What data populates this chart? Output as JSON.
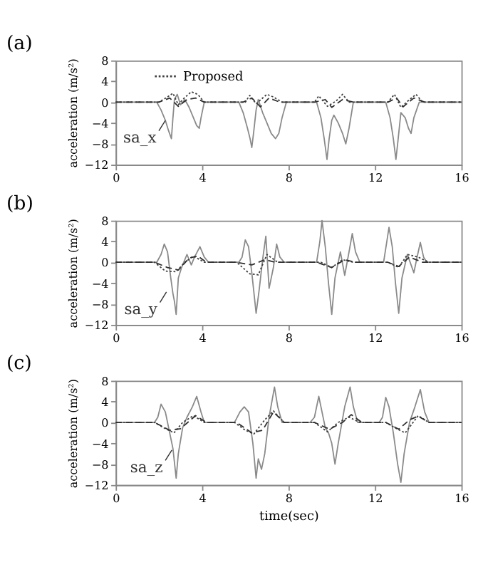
{
  "chart_data": [
    {
      "type": "line",
      "title": "(a)",
      "ylabel": "acceleration (m/s²)",
      "xlim": [
        0,
        16
      ],
      "xticks": [
        0,
        4,
        8,
        12,
        16
      ],
      "ylim": [
        -12,
        8
      ],
      "yticks": [
        -12,
        -8,
        -4,
        0,
        4,
        8
      ],
      "grid": false,
      "legend": "top left",
      "annotations": [
        {
          "text": "sa_x",
          "x": 2.3,
          "y": -3.5
        }
      ],
      "series": [
        {
          "color": "#8a8a8a",
          "line_style": "solid",
          "x": [
            0,
            1.9,
            2.1,
            2.3,
            2.45,
            2.58,
            2.65,
            2.72,
            2.85,
            3.0,
            3.2,
            3.4,
            3.6,
            3.75,
            3.87,
            3.95,
            4.1,
            5.7,
            5.9,
            6.1,
            6.22,
            6.3,
            6.38,
            6.5,
            6.6,
            6.8,
            7.0,
            7.2,
            7.4,
            7.55,
            7.7,
            7.9,
            8.3,
            9.3,
            9.5,
            9.65,
            9.78,
            9.88,
            10.0,
            10.1,
            10.3,
            10.5,
            10.65,
            10.8,
            11.0,
            12.5,
            12.7,
            12.85,
            12.97,
            13.05,
            13.2,
            13.4,
            13.55,
            13.67,
            13.8,
            14.05,
            16
          ],
          "values": [
            0,
            0,
            -1.5,
            -3.5,
            -5.5,
            -7,
            -3,
            0.5,
            1.5,
            -0.5,
            0.5,
            -1,
            -3,
            -4.5,
            -5,
            -3,
            0,
            0,
            -2,
            -5,
            -7,
            -8.7,
            -6,
            -1.5,
            0.5,
            -2,
            -4,
            -6,
            -7,
            -6,
            -3,
            0,
            0,
            0,
            -3,
            -7,
            -11,
            -7,
            -3.5,
            -2.5,
            -4,
            -6,
            -8,
            -5,
            0,
            0,
            -3,
            -7,
            -11,
            -8,
            -2,
            -3,
            -5,
            -6,
            -3,
            0,
            0
          ]
        },
        {
          "name": "Proposed",
          "color": "#404040",
          "line_style": "dotted",
          "x": [
            0,
            2.0,
            2.4,
            2.65,
            2.9,
            3.1,
            3.5,
            3.8,
            4.1,
            6.0,
            6.2,
            6.5,
            7.0,
            7.3,
            7.7,
            9.2,
            9.4,
            9.8,
            10.2,
            10.5,
            10.8,
            12.6,
            12.9,
            13.2,
            13.6,
            13.9,
            14.2,
            16
          ],
          "values": [
            0,
            0,
            1,
            1.7,
            -0.5,
            0.5,
            2,
            1.5,
            0,
            0,
            1.3,
            -0.3,
            1.5,
            1,
            0,
            0,
            1.2,
            -0.8,
            0.2,
            1.5,
            0,
            0,
            1.5,
            -1,
            0.5,
            1.5,
            0,
            0
          ]
        },
        {
          "color": "#303030",
          "line_style": "dashed",
          "x": [
            0,
            2.0,
            2.5,
            2.9,
            3.3,
            3.7,
            4.1,
            5.9,
            6.3,
            6.7,
            7.1,
            7.6,
            9.2,
            9.7,
            10.0,
            10.5,
            11.0,
            12.6,
            13.0,
            13.3,
            13.8,
            14.3,
            16
          ],
          "values": [
            0,
            0,
            0.8,
            -0.8,
            0.5,
            0.8,
            0,
            0,
            0.8,
            -0.9,
            0.8,
            0,
            0,
            0.5,
            -1,
            0.5,
            0,
            0,
            0.8,
            -0.9,
            0.8,
            0,
            0
          ]
        }
      ]
    },
    {
      "type": "line",
      "title": "(b)",
      "ylabel": "acceleration (m/s²)",
      "xlim": [
        0,
        16
      ],
      "xticks": [
        0,
        4,
        8,
        12,
        16
      ],
      "ylim": [
        -12,
        8
      ],
      "yticks": [
        -12,
        -8,
        -4,
        0,
        4,
        8
      ],
      "grid": false,
      "annotations": [
        {
          "text": "sa_y",
          "x": 2.35,
          "y": -5.7
        }
      ],
      "series": [
        {
          "color": "#8a8a8a",
          "line_style": "solid",
          "x": [
            0,
            1.9,
            2.1,
            2.25,
            2.4,
            2.55,
            2.65,
            2.72,
            2.8,
            2.9,
            3.05,
            3.3,
            3.5,
            3.65,
            3.9,
            4.1,
            4.3,
            5.7,
            5.85,
            6.0,
            6.15,
            6.3,
            6.5,
            6.65,
            6.8,
            6.95,
            7.1,
            7.3,
            7.45,
            7.6,
            7.8,
            9.3,
            9.45,
            9.55,
            9.7,
            9.85,
            10.0,
            10.15,
            10.4,
            10.6,
            10.8,
            10.95,
            11.1,
            11.3,
            12.4,
            12.55,
            12.65,
            12.8,
            12.95,
            13.1,
            13.25,
            13.5,
            13.8,
            13.95,
            14.1,
            14.25,
            14.4,
            16
          ],
          "values": [
            0,
            0,
            1.5,
            3.5,
            2,
            -3,
            -6,
            -7.5,
            -10,
            -3,
            -1,
            1.5,
            -0.5,
            1,
            3,
            1,
            0,
            0,
            1,
            4.3,
            3,
            -2,
            -9.8,
            -5,
            0.5,
            5,
            -5,
            -1,
            3.5,
            1,
            0,
            0,
            4,
            8,
            3,
            -4,
            -10,
            -3,
            2,
            -2.5,
            2,
            5.5,
            2,
            0,
            0,
            4,
            6.7,
            3,
            -4,
            -9.8,
            -3,
            1.5,
            -2,
            1,
            3.8,
            1,
            0,
            0
          ]
        },
        {
          "color": "#404040",
          "line_style": "dotted",
          "x": [
            0,
            1.8,
            2.3,
            2.8,
            3.2,
            3.6,
            4.1,
            5.6,
            6.2,
            6.6,
            7.0,
            7.5,
            9.5,
            10.0,
            10.5,
            11.0,
            12.6,
            13.1,
            13.5,
            14.0,
            14.5,
            16
          ],
          "values": [
            0,
            0,
            -1.7,
            -1.8,
            0,
            1.2,
            0,
            0,
            -2.2,
            -2.4,
            1.5,
            0,
            0,
            -1,
            0.5,
            0,
            0,
            -1,
            1.5,
            1,
            0,
            0
          ]
        },
        {
          "color": "#303030",
          "line_style": "dashed",
          "x": [
            0,
            1.8,
            2.4,
            2.9,
            3.4,
            3.8,
            4.2,
            5.6,
            6.3,
            6.9,
            7.4,
            9.3,
            10.0,
            10.6,
            11.1,
            12.6,
            13.1,
            13.6,
            14.2,
            16
          ],
          "values": [
            0,
            0,
            -1,
            -1.5,
            0.8,
            1.2,
            0,
            0,
            -0.5,
            0.5,
            0,
            0,
            -1,
            0.5,
            0,
            0,
            -0.8,
            1,
            0,
            0
          ]
        }
      ]
    },
    {
      "type": "line",
      "title": "(c)",
      "xlabel": "time(sec)",
      "ylabel": "acceleration (m/s²)",
      "xlim": [
        0,
        16
      ],
      "xticks": [
        0,
        4,
        8,
        12,
        16
      ],
      "ylim": [
        -12,
        8
      ],
      "yticks": [
        -12,
        -8,
        -4,
        0,
        4,
        8
      ],
      "grid": false,
      "annotations": [
        {
          "text": "sa_z",
          "x": 2.6,
          "y": -5.3
        }
      ],
      "series": [
        {
          "color": "#8a8a8a",
          "line_style": "solid",
          "x": [
            0,
            1.8,
            1.95,
            2.1,
            2.3,
            2.5,
            2.65,
            2.8,
            2.9,
            3.1,
            3.3,
            3.55,
            3.75,
            3.95,
            4.1,
            4.3,
            5.5,
            5.75,
            5.95,
            6.15,
            6.35,
            6.5,
            6.6,
            6.75,
            6.9,
            7.1,
            7.35,
            7.5,
            7.7,
            9.0,
            9.2,
            9.4,
            9.55,
            9.7,
            9.85,
            10.0,
            10.15,
            10.3,
            10.6,
            10.85,
            11.0,
            11.2,
            12.2,
            12.35,
            12.5,
            12.65,
            12.85,
            13.05,
            13.2,
            13.35,
            13.6,
            13.85,
            14.1,
            14.3,
            14.5,
            16
          ],
          "values": [
            0,
            0,
            1,
            3.5,
            2,
            -2,
            -5,
            -10.7,
            -6,
            -1,
            1,
            3,
            5,
            2,
            0,
            0,
            0,
            2,
            3,
            2,
            -4,
            -10.7,
            -7,
            -9,
            -6,
            1,
            6.8,
            3,
            0,
            0,
            1,
            5,
            2,
            -1,
            -2,
            -4,
            -8,
            -4,
            3,
            6.8,
            3,
            0,
            0,
            1,
            4.8,
            3,
            -2,
            -8,
            -11.5,
            -6,
            0,
            3,
            6.3,
            2,
            0,
            0
          ]
        },
        {
          "color": "#404040",
          "line_style": "dotted",
          "x": [
            0,
            1.8,
            2.3,
            2.7,
            3.1,
            3.6,
            4.1,
            5.5,
            6.0,
            6.4,
            6.9,
            7.3,
            7.8,
            9.2,
            9.8,
            10.3,
            10.8,
            11.3,
            12.5,
            13.0,
            13.4,
            14.0,
            14.5,
            16
          ],
          "values": [
            0,
            0,
            -1.2,
            -2,
            0,
            1.3,
            0,
            0,
            -1.5,
            -2.2,
            0.5,
            2.2,
            0,
            0,
            -1.8,
            0,
            1,
            0,
            0,
            -1.2,
            -2,
            1.3,
            0,
            0
          ]
        },
        {
          "color": "#303030",
          "line_style": "dashed",
          "x": [
            0,
            1.8,
            2.5,
            3.0,
            3.7,
            4.2,
            5.6,
            6.3,
            6.8,
            7.3,
            7.8,
            9.2,
            9.9,
            10.5,
            10.9,
            11.4,
            12.5,
            13.1,
            13.6,
            14.0,
            14.5,
            16
          ],
          "values": [
            0,
            0,
            -1.5,
            -1.2,
            1.3,
            0,
            0,
            -2,
            -1.5,
            2,
            0,
            0,
            -1.3,
            0,
            1.5,
            0,
            0,
            -1.3,
            0.5,
            1.2,
            0,
            0
          ]
        }
      ]
    }
  ]
}
